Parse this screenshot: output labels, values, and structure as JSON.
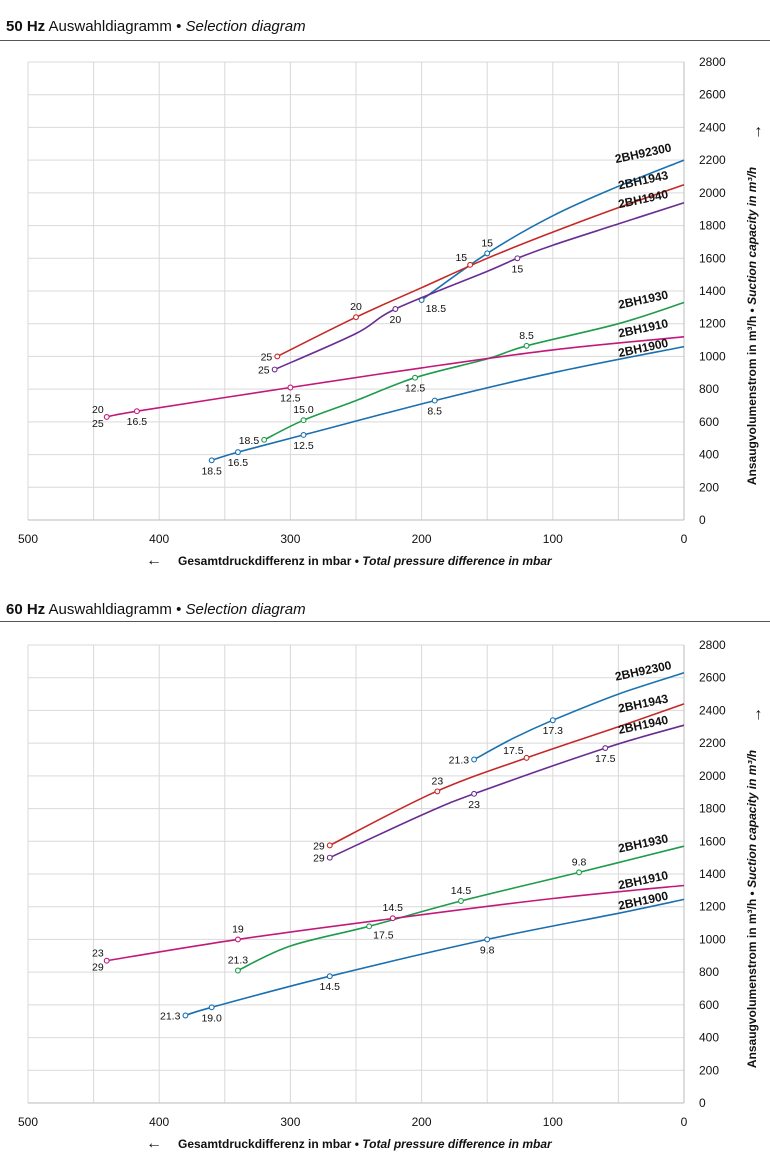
{
  "colors": {
    "2BH92300": "#1a73b0",
    "2BH1943": "#c62828",
    "2BH1940": "#6a2c91",
    "2BH1930": "#1e9b4b",
    "2BH1910": "#c2187b",
    "2BH1900": "#1a6fb0",
    "grid": "#d9d9d9"
  },
  "chart_data": [
    {
      "type": "line",
      "title_hz": "50 Hz",
      "title_de": "Auswahldiagramm",
      "title_sep": "•",
      "title_en": "Selection diagram",
      "xlabel_de": "Gesamtdruckdifferenz in mbar",
      "xlabel_sep": "•",
      "xlabel_en": "Total pressure difference in mbar",
      "ylabel_de": "Ansaugvolumenstrom in m³/h",
      "ylabel_sep": "•",
      "ylabel_en": "Suction capacity in m³/h",
      "x_arrow": "←",
      "y_arrow": "→",
      "xlim": [
        500,
        0
      ],
      "ylim": [
        0,
        2800
      ],
      "xticks": [
        500,
        400,
        300,
        200,
        100,
        0
      ],
      "yticks": [
        0,
        200,
        400,
        600,
        800,
        1000,
        1200,
        1400,
        1600,
        1800,
        2000,
        2200,
        2400,
        2600,
        2800
      ],
      "grid": true,
      "series": [
        {
          "name": "2BH92300",
          "color_key": "2BH92300",
          "points": [
            [
              200,
              1345
            ],
            [
              150,
              1630
            ],
            [
              100,
              1860
            ],
            [
              50,
              2040
            ],
            [
              0,
              2200
            ]
          ],
          "markers": [
            {
              "x": 200,
              "y": 1345,
              "label": "18.5",
              "pos": "br"
            },
            {
              "x": 150,
              "y": 1630,
              "label": "15",
              "pos": "t"
            }
          ]
        },
        {
          "name": "2BH1943",
          "color_key": "2BH1943",
          "points": [
            [
              310,
              1000
            ],
            [
              250,
              1240
            ],
            [
              200,
              1420
            ],
            [
              150,
              1600
            ],
            [
              100,
              1760
            ],
            [
              50,
              1910
            ],
            [
              0,
              2050
            ]
          ],
          "markers": [
            {
              "x": 310,
              "y": 1000,
              "label": "25",
              "pos": "l"
            },
            {
              "x": 250,
              "y": 1240,
              "label": "20",
              "pos": "t"
            },
            {
              "x": 163,
              "y": 1560,
              "label": "15",
              "pos": "tl"
            }
          ]
        },
        {
          "name": "2BH1940",
          "color_key": "2BH1940",
          "points": [
            [
              312,
              920
            ],
            [
              250,
              1140
            ],
            [
              220,
              1290
            ],
            [
              150,
              1520
            ],
            [
              127,
              1600
            ],
            [
              100,
              1680
            ],
            [
              50,
              1810
            ],
            [
              0,
              1940
            ]
          ],
          "markers": [
            {
              "x": 312,
              "y": 920,
              "label": "25",
              "pos": "l"
            },
            {
              "x": 220,
              "y": 1290,
              "label": "20",
              "pos": "b"
            },
            {
              "x": 127,
              "y": 1600,
              "label": "15",
              "pos": "b"
            }
          ]
        },
        {
          "name": "2BH1930",
          "color_key": "2BH1930",
          "points": [
            [
              320,
              490
            ],
            [
              290,
              610
            ],
            [
              250,
              730
            ],
            [
              205,
              870
            ],
            [
              150,
              985
            ],
            [
              120,
              1065
            ],
            [
              50,
              1200
            ],
            [
              0,
              1330
            ]
          ],
          "markers": [
            {
              "x": 320,
              "y": 490,
              "label": "18.5",
              "pos": "l"
            },
            {
              "x": 290,
              "y": 610,
              "label": "15.0",
              "pos": "t"
            },
            {
              "x": 205,
              "y": 870,
              "label": "12.5",
              "pos": "b"
            },
            {
              "x": 120,
              "y": 1065,
              "label": "8.5",
              "pos": "t"
            }
          ]
        },
        {
          "name": "2BH1910",
          "color_key": "2BH1910",
          "points": [
            [
              440,
              630
            ],
            [
              417,
              665
            ],
            [
              300,
              810
            ],
            [
              200,
              930
            ],
            [
              100,
              1040
            ],
            [
              0,
              1120
            ]
          ],
          "markers": [
            {
              "x": 440,
              "y": 630,
              "label": "20",
              "pos": "tl",
              "label2": "25"
            },
            {
              "x": 417,
              "y": 665,
              "label": "16.5",
              "pos": "b"
            },
            {
              "x": 300,
              "y": 810,
              "label": "12.5",
              "pos": "b"
            }
          ]
        },
        {
          "name": "2BH1900",
          "color_key": "2BH1900",
          "points": [
            [
              360,
              365
            ],
            [
              340,
              415
            ],
            [
              290,
              520
            ],
            [
              190,
              730
            ],
            [
              100,
              900
            ],
            [
              0,
              1060
            ]
          ],
          "markers": [
            {
              "x": 360,
              "y": 365,
              "label": "18.5",
              "pos": "b"
            },
            {
              "x": 340,
              "y": 415,
              "label": "16.5",
              "pos": "b"
            },
            {
              "x": 290,
              "y": 520,
              "label": "12.5",
              "pos": "b"
            },
            {
              "x": 190,
              "y": 730,
              "label": "8.5",
              "pos": "b"
            }
          ]
        }
      ],
      "curve_labels": [
        {
          "series": "2BH92300",
          "x": 30,
          "y": 2200
        },
        {
          "series": "2BH1943",
          "x": 30,
          "y": 2035
        },
        {
          "series": "2BH1940",
          "x": 30,
          "y": 1920
        },
        {
          "series": "2BH1930",
          "x": 30,
          "y": 1305
        },
        {
          "series": "2BH1910",
          "x": 30,
          "y": 1130
        },
        {
          "series": "2BH1900",
          "x": 30,
          "y": 1010
        }
      ]
    },
    {
      "type": "line",
      "title_hz": "60 Hz",
      "title_de": "Auswahldiagramm",
      "title_sep": "•",
      "title_en": "Selection diagram",
      "xlabel_de": "Gesamtdruckdifferenz in mbar",
      "xlabel_sep": "•",
      "xlabel_en": "Total pressure difference in mbar",
      "ylabel_de": "Ansaugvolumenstrom in m³/h",
      "ylabel_sep": "•",
      "ylabel_en": "Suction capacity in m³/h",
      "x_arrow": "←",
      "y_arrow": "→",
      "xlim": [
        500,
        0
      ],
      "ylim": [
        0,
        2800
      ],
      "xticks": [
        500,
        400,
        300,
        200,
        100,
        0
      ],
      "yticks": [
        0,
        200,
        400,
        600,
        800,
        1000,
        1200,
        1400,
        1600,
        1800,
        2000,
        2200,
        2400,
        2600,
        2800
      ],
      "grid": true,
      "series": [
        {
          "name": "2BH92300",
          "color_key": "2BH92300",
          "points": [
            [
              160,
              2100
            ],
            [
              130,
              2230
            ],
            [
              100,
              2340
            ],
            [
              50,
              2500
            ],
            [
              0,
              2630
            ]
          ],
          "markers": [
            {
              "x": 160,
              "y": 2100,
              "label": "21.3",
              "pos": "l"
            },
            {
              "x": 100,
              "y": 2340,
              "label": "17.3",
              "pos": "b"
            }
          ]
        },
        {
          "name": "2BH1943",
          "color_key": "2BH1943",
          "points": [
            [
              270,
              1575
            ],
            [
              190,
              1900
            ],
            [
              120,
              2110
            ],
            [
              50,
              2300
            ],
            [
              0,
              2440
            ]
          ],
          "markers": [
            {
              "x": 270,
              "y": 1575,
              "label": "29",
              "pos": "l"
            },
            {
              "x": 188,
              "y": 1905,
              "label": "23",
              "pos": "t"
            },
            {
              "x": 120,
              "y": 2110,
              "label": "17.5",
              "pos": "tl"
            }
          ]
        },
        {
          "name": "2BH1940",
          "color_key": "2BH1940",
          "points": [
            [
              270,
              1500
            ],
            [
              200,
              1760
            ],
            [
              160,
              1890
            ],
            [
              60,
              2170
            ],
            [
              0,
              2310
            ]
          ],
          "markers": [
            {
              "x": 270,
              "y": 1500,
              "label": "29",
              "pos": "l"
            },
            {
              "x": 160,
              "y": 1890,
              "label": "23",
              "pos": "b"
            },
            {
              "x": 60,
              "y": 2170,
              "label": "17.5",
              "pos": "b"
            }
          ]
        },
        {
          "name": "2BH1930",
          "color_key": "2BH1930",
          "points": [
            [
              340,
              810
            ],
            [
              300,
              960
            ],
            [
              240,
              1080
            ],
            [
              170,
              1235
            ],
            [
              80,
              1410
            ],
            [
              0,
              1570
            ]
          ],
          "markers": [
            {
              "x": 340,
              "y": 810,
              "label": "21.3",
              "pos": "t"
            },
            {
              "x": 240,
              "y": 1080,
              "label": "17.5",
              "pos": "br"
            },
            {
              "x": 170,
              "y": 1235,
              "label": "14.5",
              "pos": "t"
            },
            {
              "x": 80,
              "y": 1410,
              "label": "9.8",
              "pos": "t"
            }
          ]
        },
        {
          "name": "2BH1910",
          "color_key": "2BH1910",
          "points": [
            [
              440,
              870
            ],
            [
              340,
              1000
            ],
            [
              220,
              1130
            ],
            [
              100,
              1250
            ],
            [
              0,
              1330
            ]
          ],
          "markers": [
            {
              "x": 440,
              "y": 870,
              "label": "23",
              "pos": "tl",
              "label2": "29"
            },
            {
              "x": 340,
              "y": 1000,
              "label": "19",
              "pos": "t"
            },
            {
              "x": 222,
              "y": 1130,
              "label": "14.5",
              "pos": "t"
            }
          ]
        },
        {
          "name": "2BH1900",
          "color_key": "2BH1900",
          "points": [
            [
              380,
              535
            ],
            [
              360,
              585
            ],
            [
              270,
              775
            ],
            [
              150,
              1000
            ],
            [
              50,
              1160
            ],
            [
              0,
              1245
            ]
          ],
          "markers": [
            {
              "x": 380,
              "y": 535,
              "label": "21.3",
              "pos": "l"
            },
            {
              "x": 360,
              "y": 585,
              "label": "19.0",
              "pos": "b"
            },
            {
              "x": 270,
              "y": 775,
              "label": "14.5",
              "pos": "b"
            },
            {
              "x": 150,
              "y": 1000,
              "label": "9.8",
              "pos": "b"
            }
          ]
        }
      ],
      "curve_labels": [
        {
          "series": "2BH92300",
          "x": 30,
          "y": 2600
        },
        {
          "series": "2BH1943",
          "x": 30,
          "y": 2400
        },
        {
          "series": "2BH1940",
          "x": 30,
          "y": 2270
        },
        {
          "series": "2BH1930",
          "x": 30,
          "y": 1545
        },
        {
          "series": "2BH1910",
          "x": 30,
          "y": 1320
        },
        {
          "series": "2BH1900",
          "x": 30,
          "y": 1195
        }
      ]
    }
  ]
}
